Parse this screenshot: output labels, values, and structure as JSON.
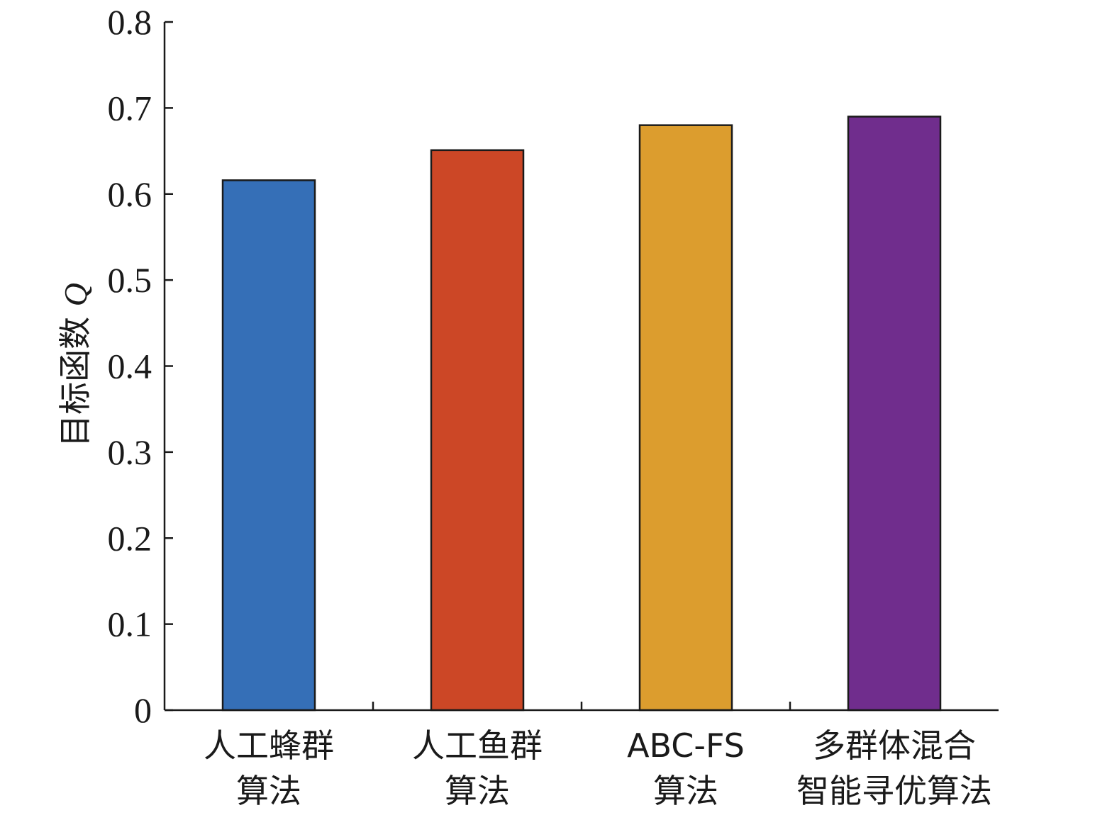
{
  "chart_data": {
    "type": "bar",
    "categories": [
      [
        "人工蜂群",
        "算法"
      ],
      [
        "人工鱼群",
        "算法"
      ],
      [
        "ABC-FS",
        "算法"
      ],
      [
        "多群体混合",
        "智能寻优算法"
      ]
    ],
    "values": [
      0.616,
      0.651,
      0.68,
      0.69
    ],
    "colors": [
      "#356fb7",
      "#cc4726",
      "#dc9d2e",
      "#702d8d"
    ],
    "ylabel_prefix": "目标函数 ",
    "ylabel_var": "Q",
    "ylim": [
      0,
      0.8
    ],
    "yticks": [
      "0",
      "0.1",
      "0.2",
      "0.3",
      "0.4",
      "0.5",
      "0.6",
      "0.7",
      "0.8"
    ],
    "grid": false
  }
}
